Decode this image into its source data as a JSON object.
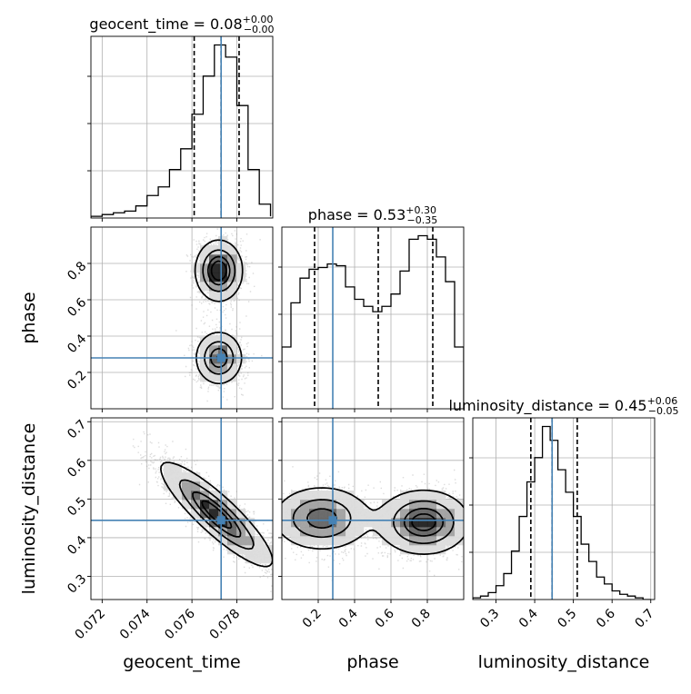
{
  "chart_data": {
    "type": "corner",
    "parameters": [
      {
        "name": "geocent_time",
        "axis_label": "geocent_time",
        "title": {
          "prefix": "geocent_time = ",
          "median": "0.08",
          "plus": "+0.00",
          "minus": "−0.00"
        },
        "range": [
          0.0715,
          0.0796
        ],
        "ticks": [
          0.072,
          0.074,
          0.076,
          0.078
        ],
        "tick_labels": [
          "0.072",
          "0.074",
          "0.076",
          "0.078"
        ],
        "quantiles": [
          0.0761,
          0.0773,
          0.0781
        ],
        "truth": 0.0773,
        "hist_bins": [
          0.0715,
          0.072,
          0.0725,
          0.073,
          0.0735,
          0.074,
          0.0745,
          0.075,
          0.0755,
          0.076,
          0.0765,
          0.077,
          0.0775,
          0.078,
          0.0785,
          0.079,
          0.0795
        ],
        "hist_counts": [
          1,
          2,
          3,
          4,
          7,
          13,
          18,
          28,
          40,
          60,
          82,
          100,
          93,
          65,
          28,
          8,
          1
        ]
      },
      {
        "name": "phase",
        "axis_label": "phase",
        "title": {
          "prefix": "phase = ",
          "median": "0.53",
          "plus": "+0.30",
          "minus": "−0.35"
        },
        "range": [
          0.0,
          1.0
        ],
        "ticks": [
          0.2,
          0.4,
          0.6,
          0.8
        ],
        "tick_labels": [
          "0.2",
          "0.4",
          "0.6",
          "0.8"
        ],
        "quantiles": [
          0.18,
          0.53,
          0.83
        ],
        "truth": 0.28,
        "hist_bins": [
          0.0,
          0.05,
          0.1,
          0.15,
          0.2,
          0.25,
          0.3,
          0.35,
          0.4,
          0.45,
          0.5,
          0.55,
          0.6,
          0.65,
          0.7,
          0.75,
          0.8,
          0.85,
          0.9,
          0.95,
          1.0
        ],
        "hist_counts": [
          35,
          60,
          74,
          79,
          80,
          82,
          81,
          69,
          62,
          58,
          55,
          58,
          65,
          78,
          96,
          98,
          96,
          86,
          72,
          35
        ]
      },
      {
        "name": "luminosity_distance",
        "axis_label": "luminosity_distance",
        "title": {
          "prefix": "luminosity_distance = ",
          "median": "0.45",
          "plus": "+0.06",
          "minus": "−0.05"
        },
        "range": [
          0.24,
          0.71
        ],
        "ticks": [
          0.3,
          0.4,
          0.5,
          0.6,
          0.7
        ],
        "tick_labels": [
          "0.3",
          "0.4",
          "0.5",
          "0.6",
          "0.7"
        ],
        "quantiles": [
          0.39,
          0.445,
          0.51
        ],
        "truth": 0.445,
        "hist_bins": [
          0.24,
          0.26,
          0.28,
          0.3,
          0.32,
          0.34,
          0.36,
          0.38,
          0.4,
          0.42,
          0.44,
          0.46,
          0.48,
          0.5,
          0.52,
          0.54,
          0.56,
          0.58,
          0.6,
          0.62,
          0.64,
          0.66,
          0.68,
          0.7
        ],
        "hist_counts": [
          1,
          2,
          4,
          8,
          15,
          28,
          48,
          68,
          82,
          100,
          92,
          75,
          62,
          48,
          32,
          22,
          13,
          9,
          5,
          3,
          2,
          1,
          0
        ]
      }
    ],
    "truths": {
      "geocent_time": 0.0773,
      "phase": 0.28,
      "luminosity_distance": 0.445
    },
    "modes": {
      "geocent_time-phase": [
        {
          "x": 0.0772,
          "y": 0.28,
          "sx": 0.0005,
          "sy": 0.07,
          "w": 0.45
        },
        {
          "x": 0.0772,
          "y": 0.76,
          "sx": 0.0005,
          "sy": 0.08,
          "w": 0.55
        }
      ],
      "geocent_time-luminosity_distance": [
        {
          "x": 0.0771,
          "y": 0.46,
          "sx": 0.0012,
          "sy": 0.065,
          "rho": -0.88,
          "w": 1
        }
      ],
      "phase-luminosity_distance": [
        {
          "x": 0.22,
          "y": 0.45,
          "sx": 0.13,
          "sy": 0.04,
          "w": 0.45
        },
        {
          "x": 0.78,
          "y": 0.44,
          "sx": 0.12,
          "sy": 0.04,
          "w": 0.55
        }
      ]
    },
    "contour_levels": [
      0.118,
      0.393,
      0.675,
      0.865
    ],
    "colors": {
      "truth": "#4682b4",
      "hist": "#000000",
      "scatter": "#9a9a9a",
      "grid": "#b0b0b0",
      "axes": "#000000"
    },
    "grid": true
  }
}
